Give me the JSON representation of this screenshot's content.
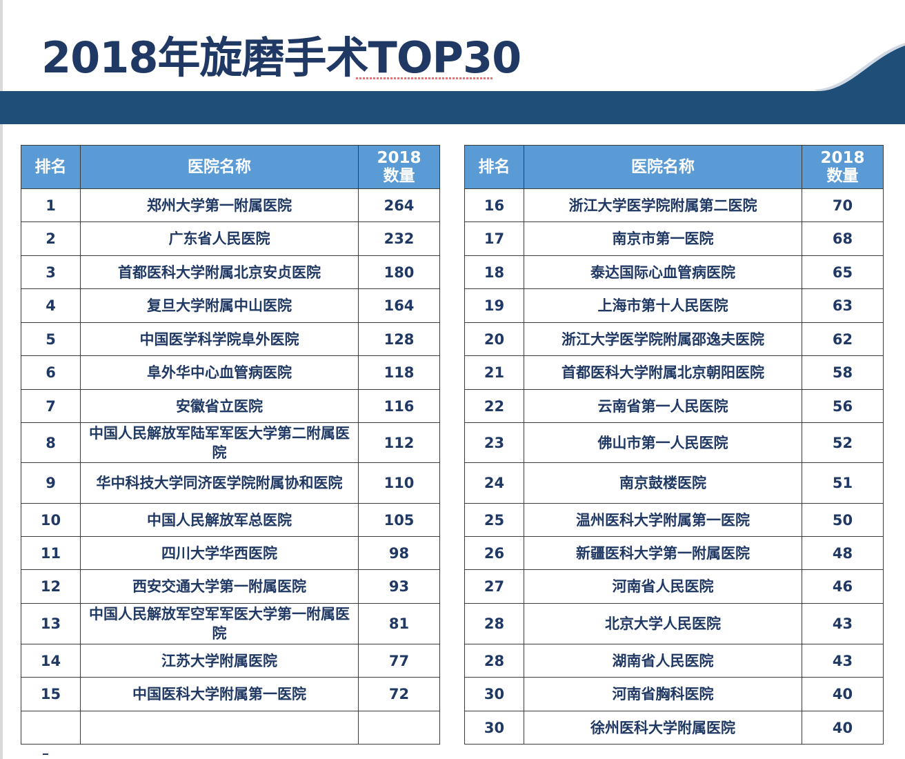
{
  "title": "2018年旋磨手术TOP30",
  "headers": {
    "rank": "排名",
    "hospital": "医院名称",
    "count_year": "2018",
    "count_label": "数量"
  },
  "left_rows": [
    {
      "rank": "1",
      "hospital": "郑州大学第一附属医院",
      "count": "264"
    },
    {
      "rank": "2",
      "hospital": "广东省人民医院",
      "count": "232"
    },
    {
      "rank": "3",
      "hospital": "首都医科大学附属北京安贞医院",
      "count": "180"
    },
    {
      "rank": "4",
      "hospital": "复旦大学附属中山医院",
      "count": "164"
    },
    {
      "rank": "5",
      "hospital": "中国医学科学院阜外医院",
      "count": "128"
    },
    {
      "rank": "6",
      "hospital": "阜外华中心血管病医院",
      "count": "118"
    },
    {
      "rank": "7",
      "hospital": "安徽省立医院",
      "count": "116"
    },
    {
      "rank": "8",
      "hospital": "中国人民解放军陆军军医大学第二附属医院",
      "count": "112"
    },
    {
      "rank": "9",
      "hospital": "华中科技大学同济医学院附属协和医院",
      "count": "110"
    },
    {
      "rank": "10",
      "hospital": "中国人民解放军总医院",
      "count": "105"
    },
    {
      "rank": "11",
      "hospital": "四川大学华西医院",
      "count": "98"
    },
    {
      "rank": "12",
      "hospital": "西安交通大学第一附属医院",
      "count": "93"
    },
    {
      "rank": "13",
      "hospital": "中国人民解放军空军军医大学第一附属医院",
      "count": "81"
    },
    {
      "rank": "14",
      "hospital": "江苏大学附属医院",
      "count": "77"
    },
    {
      "rank": "15",
      "hospital": "中国医科大学附属第一医院",
      "count": "72"
    },
    {
      "rank": "",
      "hospital": "",
      "count": ""
    }
  ],
  "right_rows": [
    {
      "rank": "16",
      "hospital": "浙江大学医学院附属第二医院",
      "count": "70"
    },
    {
      "rank": "17",
      "hospital": "南京市第一医院",
      "count": "68"
    },
    {
      "rank": "18",
      "hospital": "泰达国际心血管病医院",
      "count": "65"
    },
    {
      "rank": "19",
      "hospital": "上海市第十人民医院",
      "count": "63"
    },
    {
      "rank": "20",
      "hospital": "浙江大学医学院附属邵逸夫医院",
      "count": "62"
    },
    {
      "rank": "21",
      "hospital": "首都医科大学附属北京朝阳医院",
      "count": "58"
    },
    {
      "rank": "22",
      "hospital": "云南省第一人民医院",
      "count": "56"
    },
    {
      "rank": "23",
      "hospital": "佛山市第一人民医院",
      "count": "52"
    },
    {
      "rank": "24",
      "hospital": "南京鼓楼医院",
      "count": "51"
    },
    {
      "rank": "25",
      "hospital": "温州医科大学附属第一医院",
      "count": "50"
    },
    {
      "rank": "26",
      "hospital": "新疆医科大学第一附属医院",
      "count": "48"
    },
    {
      "rank": "27",
      "hospital": "河南省人民医院",
      "count": "46"
    },
    {
      "rank": "28",
      "hospital": "北京大学人民医院",
      "count": "43"
    },
    {
      "rank": "28",
      "hospital": "湖南省人民医院",
      "count": "43"
    },
    {
      "rank": "30",
      "hospital": "河南省胸科医院",
      "count": "40"
    },
    {
      "rank": "30",
      "hospital": "徐州医科大学附属医院",
      "count": "40"
    }
  ],
  "colors": {
    "title": "#1f3864",
    "banner": "#1f4e79",
    "header_bg": "#5b9bd5",
    "text": "#1f3864"
  }
}
